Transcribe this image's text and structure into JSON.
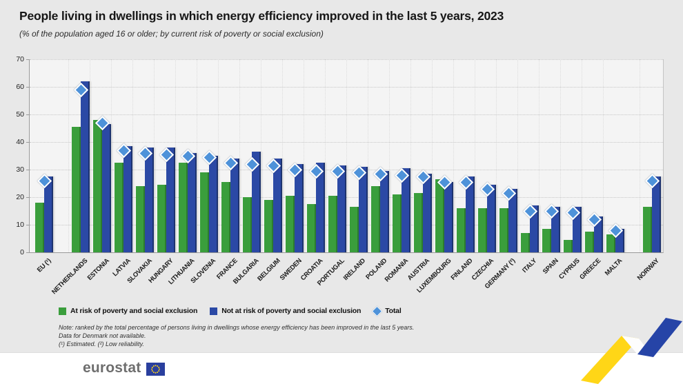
{
  "header": {
    "title": "People living in dwellings in which energy efficiency improved in the last 5 years, 2023",
    "subtitle": "(% of the population aged 16 or older; by current risk of poverty or social exclusion)"
  },
  "legend": {
    "items": [
      {
        "label": "At risk of poverty and social exclusion",
        "swatch": "green-square"
      },
      {
        "label": "Not at risk of poverty and social exclusion",
        "swatch": "blue-square"
      },
      {
        "label": "Total",
        "swatch": "blue-diamond"
      }
    ]
  },
  "notes": {
    "line1": "Note: ranked by the total percentage of persons living in dwellings whose energy efficiency has been improved in the last 5 years.",
    "line2": "Data for Denmark not available.",
    "line3": "(¹) Estimated. (²) Low reliability."
  },
  "footer": {
    "brand": "eurostat"
  },
  "colors": {
    "at_risk_green": "#3A9E3C",
    "not_at_risk_blue": "#2B49A5",
    "total_diamond": "#4E92D9",
    "ribbon_yellow": "#FFD617",
    "ribbon_blue": "#2644A7",
    "page_background": "#E8E8E8",
    "plot_background": "#F4F4F4"
  },
  "chart_data": {
    "type": "bar",
    "title": "People living in dwellings in which energy efficiency improved in the last 5 years, 2023",
    "subtitle": "(% of the population aged 16 or older; by current risk of poverty or social exclusion)",
    "xlabel": "",
    "ylabel": "",
    "ylim": [
      0,
      70
    ],
    "yticks": [
      0,
      10,
      20,
      30,
      40,
      50,
      60,
      70
    ],
    "grid": "dotted",
    "legend_position": "bottom",
    "group_gaps_after": [
      "EU (¹)",
      "MALTA"
    ],
    "categories": [
      "EU (¹)",
      "NETHERLANDS",
      "ESTONIA",
      "LATVIA",
      "SLOVAKIA",
      "HUNGARY",
      "LITHUANIA",
      "SLOVENIA",
      "FRANCE",
      "BULGARIA",
      "BELGIUM",
      "SWEDEN",
      "CROATIA",
      "PORTUGAL",
      "IRELAND",
      "POLAND",
      "ROMANIA",
      "AUSTRIA",
      "LUXEMBOURG",
      "FINLAND",
      "CZECHIA",
      "GERMANY (²)",
      "ITALY",
      "SPAIN",
      "CYPRUS",
      "GREECE",
      "MALTA",
      "NORWAY"
    ],
    "series": [
      {
        "name": "At risk of poverty and social exclusion",
        "marker": "bar",
        "color": "#3A9E3C",
        "values": [
          18,
          45.5,
          48,
          32.5,
          24,
          24.5,
          32.5,
          29,
          25.5,
          20,
          19,
          20.5,
          17.5,
          20.5,
          16.5,
          24,
          21,
          21.5,
          26.5,
          16,
          16,
          16,
          7,
          8.5,
          4.5,
          7.5,
          6.5,
          16.5
        ]
      },
      {
        "name": "Not at risk of poverty and social exclusion",
        "marker": "bar",
        "color": "#2B49A5",
        "values": [
          27.5,
          62,
          46.5,
          38.5,
          38,
          38,
          36,
          35,
          34,
          36.5,
          34,
          32,
          32.5,
          31.5,
          31,
          29.5,
          30.5,
          28.5,
          25.5,
          27.5,
          24.5,
          23,
          17,
          16.5,
          16.5,
          13,
          8.5,
          27.5
        ]
      },
      {
        "name": "Total",
        "marker": "diamond",
        "color": "#4E92D9",
        "values": [
          26,
          59,
          47,
          37,
          36,
          35.5,
          35,
          34.5,
          32.5,
          32,
          31.5,
          30,
          29.5,
          29.5,
          29,
          28.5,
          28,
          27.5,
          25.5,
          25.5,
          23,
          21.5,
          15,
          15,
          14.5,
          12,
          8,
          26
        ]
      }
    ]
  }
}
